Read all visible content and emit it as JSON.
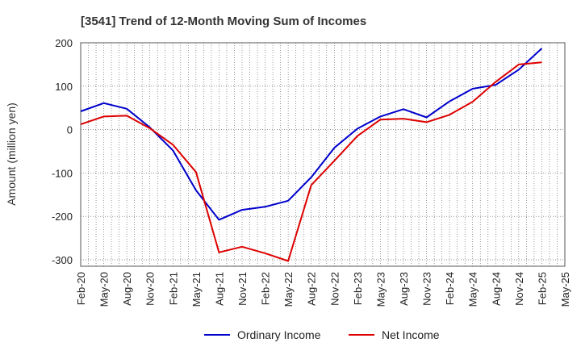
{
  "chart_data": {
    "type": "line",
    "title": "[3541]  Trend of 12-Month Moving Sum of Incomes",
    "xlabel": "",
    "ylabel": "Amount (million yen)",
    "ylim": [
      -315,
      200
    ],
    "yticks": [
      200,
      100,
      0,
      -100,
      -200,
      -300
    ],
    "categories": [
      "Feb-20",
      "May-20",
      "Aug-20",
      "Nov-20",
      "Feb-21",
      "May-21",
      "Aug-21",
      "Nov-21",
      "Feb-22",
      "May-22",
      "Aug-22",
      "Nov-22",
      "Feb-23",
      "May-23",
      "Aug-23",
      "Nov-23",
      "Feb-24",
      "May-24",
      "Aug-24",
      "Nov-24",
      "Feb-25",
      "May-25"
    ],
    "grid": true,
    "legend_position": "bottom",
    "series": [
      {
        "name": "Ordinary Income",
        "color": "#0000cc",
        "values": [
          42,
          61,
          48,
          5,
          -48,
          -140,
          -208,
          -185,
          -178,
          -164,
          -110,
          -42,
          2,
          30,
          47,
          28,
          65,
          94,
          103,
          138,
          187,
          null
        ]
      },
      {
        "name": "Net Income",
        "color": "#dd0000",
        "values": [
          12,
          30,
          32,
          3,
          -35,
          -98,
          -283,
          -270,
          -285,
          -303,
          -128,
          -72,
          -15,
          23,
          25,
          17,
          34,
          64,
          110,
          150,
          155,
          null
        ]
      }
    ]
  }
}
